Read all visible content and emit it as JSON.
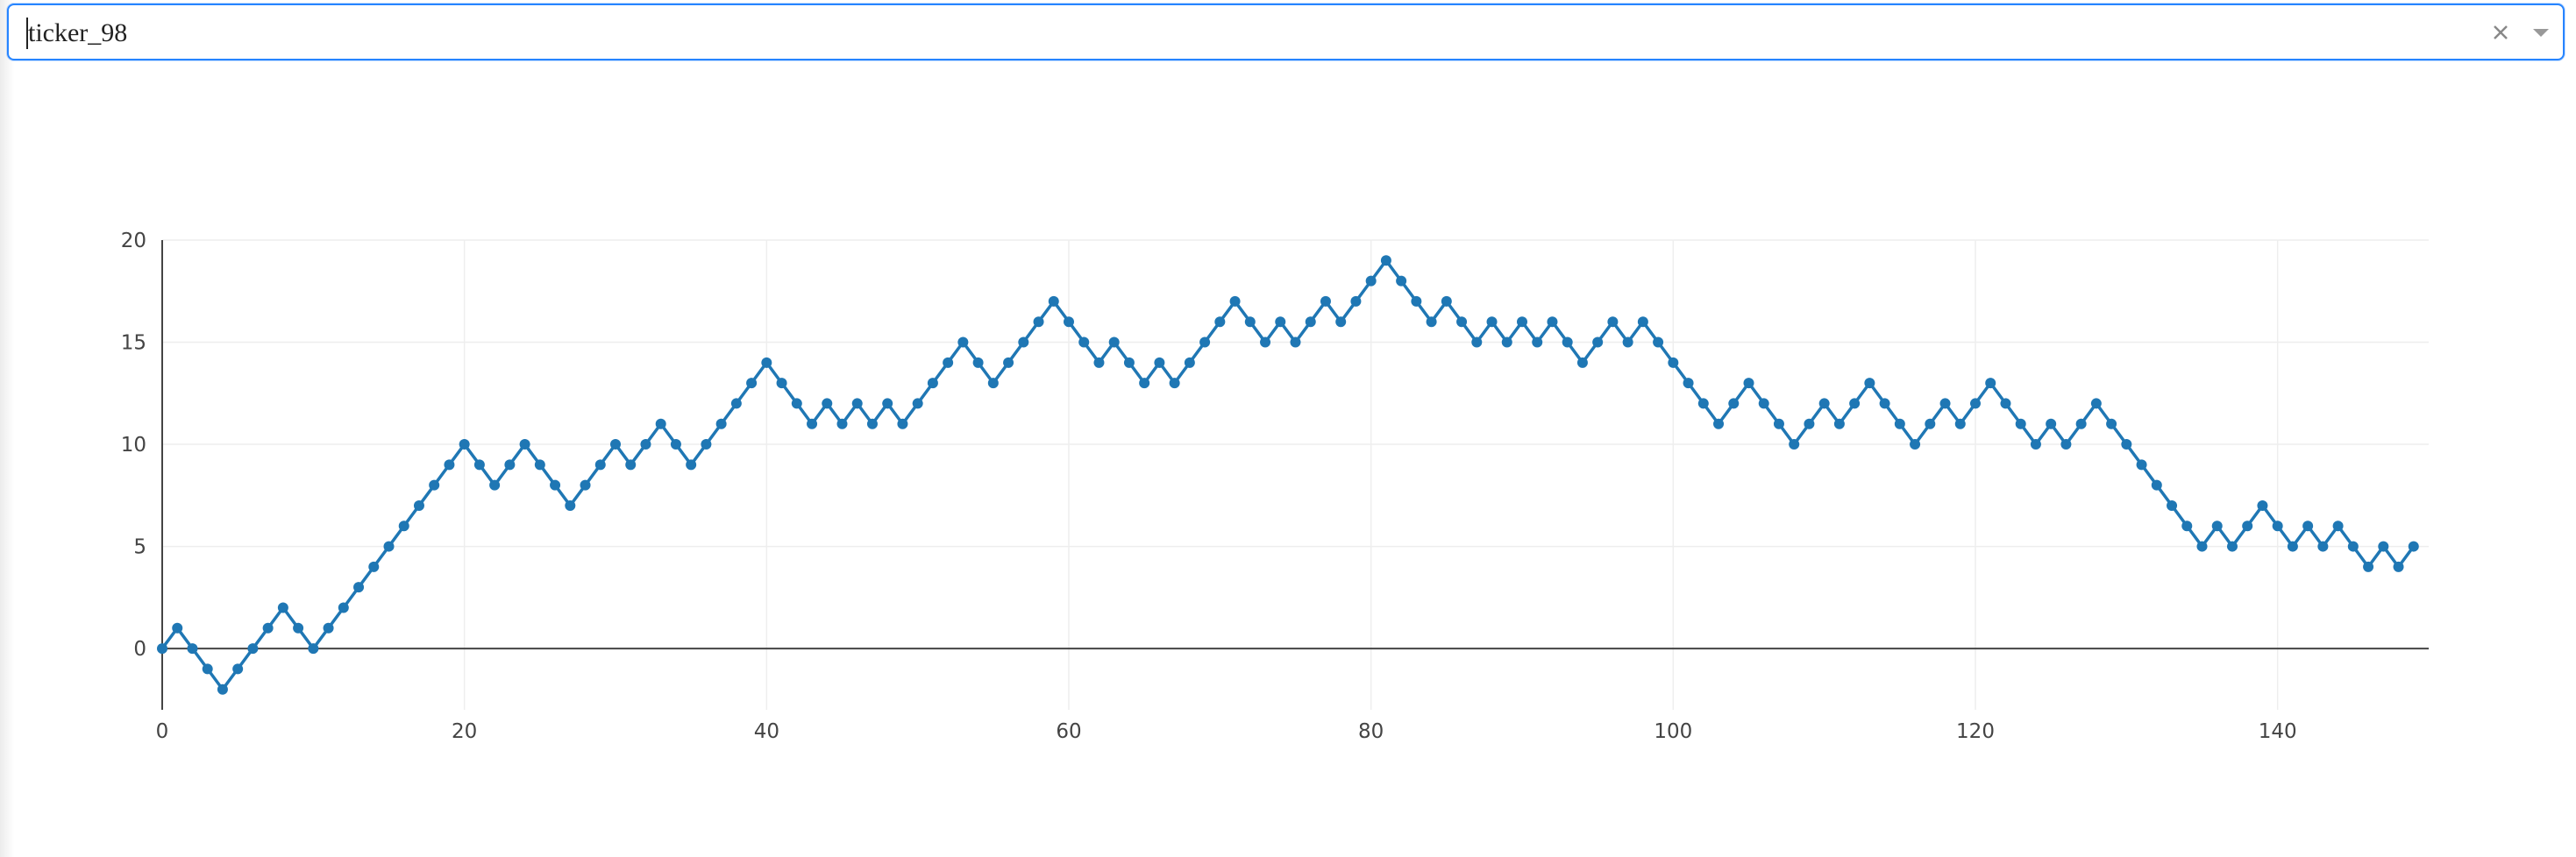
{
  "ticker_select": {
    "value": "ticker_98",
    "clear_icon": "close-icon",
    "dropdown_icon": "chevron-down-icon"
  },
  "colors": {
    "series": "#1f77b4",
    "grid": "#eeeeee",
    "axis": "#444444",
    "select_border": "#2684ff"
  },
  "chart_data": {
    "type": "line",
    "title": "",
    "xlabel": "",
    "ylabel": "",
    "xlim": [
      0,
      150
    ],
    "ylim": [
      -3,
      20
    ],
    "xticks": [
      0,
      20,
      40,
      60,
      80,
      100,
      120,
      140
    ],
    "yticks": [
      0,
      5,
      10,
      15,
      20
    ],
    "grid": true,
    "mode": "lines+markers",
    "series": [
      {
        "x": [
          0,
          1,
          2,
          3,
          4,
          5,
          6,
          7,
          8,
          9,
          10,
          11,
          12,
          13,
          14,
          15,
          16,
          17,
          18,
          19,
          20,
          21,
          22,
          23,
          24,
          25,
          26,
          27,
          28,
          29,
          30,
          31,
          32,
          33,
          34,
          35,
          36,
          37,
          38,
          39,
          40,
          41,
          42,
          43,
          44,
          45,
          46,
          47,
          48,
          49,
          50,
          51,
          52,
          53,
          54,
          55,
          56,
          57,
          58,
          59,
          60,
          61,
          62,
          63,
          64,
          65,
          66,
          67,
          68,
          69,
          70,
          71,
          72,
          73,
          74,
          75,
          76,
          77,
          78,
          79,
          80,
          81,
          82,
          83,
          84,
          85,
          86,
          87,
          88,
          89,
          90,
          91,
          92,
          93,
          94,
          95,
          96,
          97,
          98,
          99,
          100,
          101,
          102,
          103,
          104,
          105,
          106,
          107,
          108,
          109,
          110,
          111,
          112,
          113,
          114,
          115,
          116,
          117,
          118,
          119,
          120,
          121,
          122,
          123,
          124,
          125,
          126,
          127,
          128,
          129,
          130,
          131,
          132,
          133,
          134,
          135,
          136,
          137,
          138,
          139,
          140,
          141,
          142,
          143,
          144,
          145,
          146,
          147,
          148,
          149
        ],
        "y": [
          0,
          1,
          0,
          -1,
          -2,
          -1,
          0,
          1,
          2,
          1,
          0,
          1,
          2,
          3,
          4,
          5,
          6,
          7,
          8,
          9,
          10,
          9,
          8,
          9,
          10,
          9,
          8,
          7,
          8,
          9,
          10,
          9,
          10,
          11,
          10,
          9,
          10,
          11,
          12,
          13,
          14,
          13,
          12,
          11,
          12,
          11,
          12,
          11,
          12,
          11,
          12,
          13,
          14,
          15,
          14,
          13,
          14,
          15,
          16,
          17,
          16,
          15,
          14,
          15,
          14,
          13,
          14,
          13,
          14,
          15,
          16,
          17,
          16,
          15,
          16,
          15,
          16,
          17,
          16,
          17,
          18,
          19,
          18,
          17,
          16,
          17,
          16,
          15,
          16,
          15,
          16,
          15,
          16,
          15,
          14,
          15,
          16,
          15,
          16,
          15,
          14,
          13,
          12,
          11,
          12,
          13,
          12,
          11,
          10,
          11,
          12,
          11,
          12,
          13,
          12,
          11,
          10,
          11,
          12,
          11,
          12,
          13,
          12,
          11,
          10,
          11,
          10,
          11,
          12,
          11,
          10,
          9,
          8,
          7,
          6,
          5,
          6,
          5,
          6,
          7,
          6,
          5,
          6,
          5,
          6,
          5,
          4,
          5,
          4,
          5
        ]
      }
    ]
  }
}
